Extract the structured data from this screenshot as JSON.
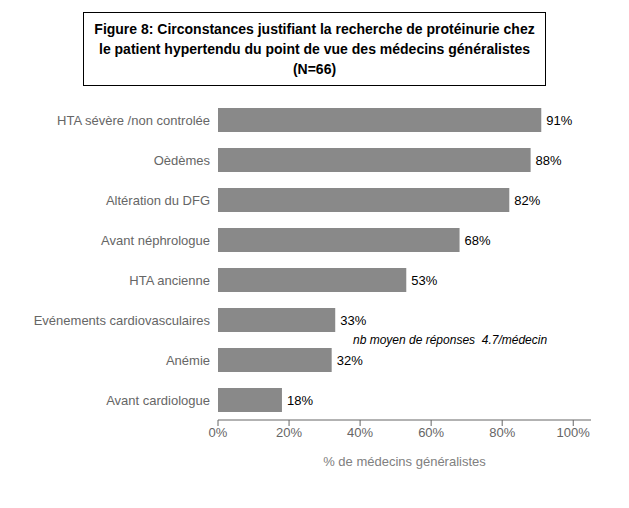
{
  "chart_data": {
    "type": "bar",
    "orientation": "horizontal",
    "title": "Figure 8: Circonstances justifiant la recherche de protéinurie chez\nle patient hypertendu du point de vue des médecins généralistes\n(N=66)",
    "categories": [
      "Avant cardiologue",
      "Anémie",
      "Evénements cardiovasculaires",
      "HTA ancienne",
      "Avant néphrologue",
      "Altération du DFG",
      "Oèdèmes",
      "HTA sévère /non controlée"
    ],
    "values": [
      18,
      32,
      33,
      53,
      68,
      82,
      88,
      91
    ],
    "value_labels": [
      "18%",
      "32%",
      "33%",
      "53%",
      "68%",
      "82%",
      "88%",
      "91%"
    ],
    "data_labels": true,
    "color": "#898989",
    "xlabel": "% de médecins généralistes",
    "xlim": [
      0,
      105
    ],
    "xticks": [
      {
        "value": 0,
        "label": "0%"
      },
      {
        "value": 20,
        "label": "20%"
      },
      {
        "value": 40,
        "label": "40%"
      },
      {
        "value": 60,
        "label": "60%"
      },
      {
        "value": 80,
        "label": "80%"
      },
      {
        "value": 100,
        "label": "100%"
      }
    ],
    "annotations": [
      "nb moyen de réponses  4.7/médecin"
    ],
    "grid": false
  }
}
